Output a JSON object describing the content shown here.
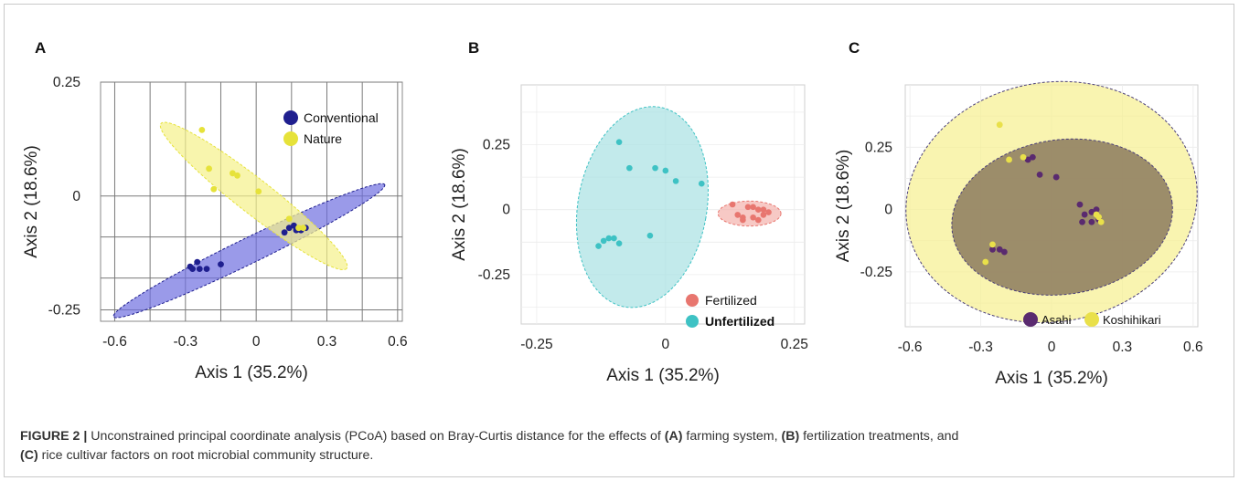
{
  "chart_data": [
    {
      "type": "scatter",
      "panel_label": "A",
      "xlabel": "Axis 1 (35.2%)",
      "ylabel": "Axis 2 (18.6%)",
      "xlim": [
        -0.66,
        0.62
      ],
      "ylim": [
        -0.275,
        0.25
      ],
      "x_ticks": [
        -0.6,
        -0.3,
        0,
        0.3,
        0.6
      ],
      "x_tick_labels": [
        "-0.6",
        "-0.3",
        "0",
        "0.3",
        "0.6"
      ],
      "y_ticks": [
        0.25,
        0,
        -0.25
      ],
      "y_tick_labels": [
        "0.25",
        "0",
        "-0.25"
      ],
      "grid": true,
      "legend_position": "top-right",
      "series": [
        {
          "name": "Conventional",
          "color": "#1f1f8f",
          "fill": "#6f6fe0",
          "x": [
            -0.28,
            -0.25,
            -0.27,
            -0.24,
            -0.21,
            -0.15,
            0.12,
            0.14,
            0.17,
            0.19,
            0.21,
            0.16
          ],
          "y": [
            -0.155,
            -0.145,
            -0.16,
            -0.16,
            -0.16,
            -0.15,
            -0.08,
            -0.07,
            -0.075,
            -0.075,
            -0.07,
            -0.065
          ],
          "ellipse": {
            "cx": -0.03,
            "cy": -0.12,
            "rx": 0.64,
            "ry": 0.028,
            "angle_deg": -26
          }
        },
        {
          "name": "Nature",
          "color": "#e6e23a",
          "fill": "#f5f18a",
          "x": [
            -0.23,
            -0.2,
            -0.1,
            -0.08,
            0.01,
            -0.18,
            0.14,
            0.18,
            0.2
          ],
          "y": [
            0.145,
            0.06,
            0.05,
            0.045,
            0.01,
            0.015,
            -0.05,
            -0.07,
            -0.07
          ],
          "ellipse": {
            "cx": -0.01,
            "cy": 0.0,
            "rx": 0.5,
            "ry": 0.038,
            "angle_deg": 38
          }
        }
      ]
    },
    {
      "type": "scatter",
      "panel_label": "B",
      "xlabel": "Axis 1 (35.2%)",
      "ylabel": "Axis 2 (18.6%)",
      "xlim": [
        -0.28,
        0.27
      ],
      "ylim": [
        -0.44,
        0.48
      ],
      "x_ticks": [
        -0.25,
        0,
        0.25
      ],
      "x_tick_labels": [
        "-0.25",
        "0",
        "0.25"
      ],
      "y_ticks": [
        0.25,
        0,
        -0.25
      ],
      "y_tick_labels": [
        "0.25",
        "0",
        "-0.25"
      ],
      "grid": true,
      "legend_position": "bottom-right",
      "series": [
        {
          "name": "Fertilized",
          "color": "#e8766f",
          "fill": "#f3b2ad",
          "x": [
            0.13,
            0.14,
            0.15,
            0.16,
            0.17,
            0.18,
            0.19,
            0.2,
            0.15,
            0.17,
            0.19,
            0.18
          ],
          "y": [
            0.02,
            -0.02,
            -0.04,
            0.01,
            -0.03,
            0.0,
            -0.02,
            -0.01,
            -0.03,
            0.01,
            0.0,
            -0.04
          ],
          "ellipse": {
            "cx": 0.163,
            "cy": -0.015,
            "rx": 0.061,
            "ry": 0.048,
            "angle_deg": 0
          }
        },
        {
          "name": "Unfertilized",
          "color": "#3ec2c4",
          "fill": "#a8e1e2",
          "x": [
            -0.09,
            -0.07,
            -0.02,
            0.0,
            0.02,
            0.07,
            -0.1,
            -0.12,
            -0.11,
            -0.13,
            -0.09,
            -0.03
          ],
          "y": [
            0.26,
            0.16,
            0.16,
            0.15,
            0.11,
            0.1,
            -0.11,
            -0.12,
            -0.11,
            -0.14,
            -0.13,
            -0.1
          ],
          "ellipse": {
            "cx": -0.045,
            "cy": 0.01,
            "rx": 0.125,
            "ry": 0.39,
            "angle_deg": 10
          }
        }
      ]
    },
    {
      "type": "scatter",
      "panel_label": "C",
      "xlabel": "Axis 1 (35.2%)",
      "ylabel": "Axis 2 (18.6%)",
      "xlim": [
        -0.62,
        0.62
      ],
      "ylim": [
        -0.47,
        0.5
      ],
      "x_ticks": [
        -0.6,
        -0.3,
        0,
        0.3,
        0.6
      ],
      "x_tick_labels": [
        "-0.6",
        "-0.3",
        "0",
        "0.3",
        "0.6"
      ],
      "y_ticks": [
        0.25,
        0,
        -0.25
      ],
      "y_tick_labels": [
        "0.25",
        "0",
        "-0.25"
      ],
      "grid": true,
      "legend_position": "bottom-right",
      "series": [
        {
          "name": "Asahi",
          "color": "#5a2a6f",
          "fill": "#8c7a5e",
          "x": [
            -0.08,
            -0.1,
            -0.05,
            0.02,
            0.12,
            0.14,
            0.17,
            0.19,
            0.13,
            0.17,
            0.2,
            -0.2,
            -0.22,
            -0.25
          ],
          "y": [
            0.21,
            0.2,
            0.14,
            0.13,
            0.02,
            -0.02,
            -0.01,
            0.0,
            -0.05,
            -0.05,
            -0.04,
            -0.17,
            -0.16,
            -0.16
          ],
          "ellipse": {
            "cx": 0.045,
            "cy": -0.03,
            "rx": 0.47,
            "ry": 0.31,
            "angle_deg": -8
          }
        },
        {
          "name": "Koshihikari",
          "color": "#e9e04a",
          "fill": "#f6f08f",
          "x": [
            -0.22,
            -0.18,
            -0.12,
            -0.25,
            -0.28,
            0.19,
            0.21,
            0.2
          ],
          "y": [
            0.34,
            0.2,
            0.21,
            -0.14,
            -0.21,
            -0.02,
            -0.05,
            -0.03
          ],
          "ellipse": {
            "cx": 0.0,
            "cy": 0.03,
            "rx": 0.62,
            "ry": 0.48,
            "angle_deg": -10
          }
        }
      ]
    }
  ],
  "caption": {
    "figure_label": "FIGURE 2 |",
    "text_1": " Unconstrained principal coordinate analysis (PCoA) based on Bray-Curtis distance for the effects of ",
    "a": "(A)",
    "text_2": " farming system, ",
    "b": "(B)",
    "text_3": " fertilization treatments, and",
    "c": "(C)",
    "text_4": " rice cultivar factors on root microbial community structure."
  }
}
